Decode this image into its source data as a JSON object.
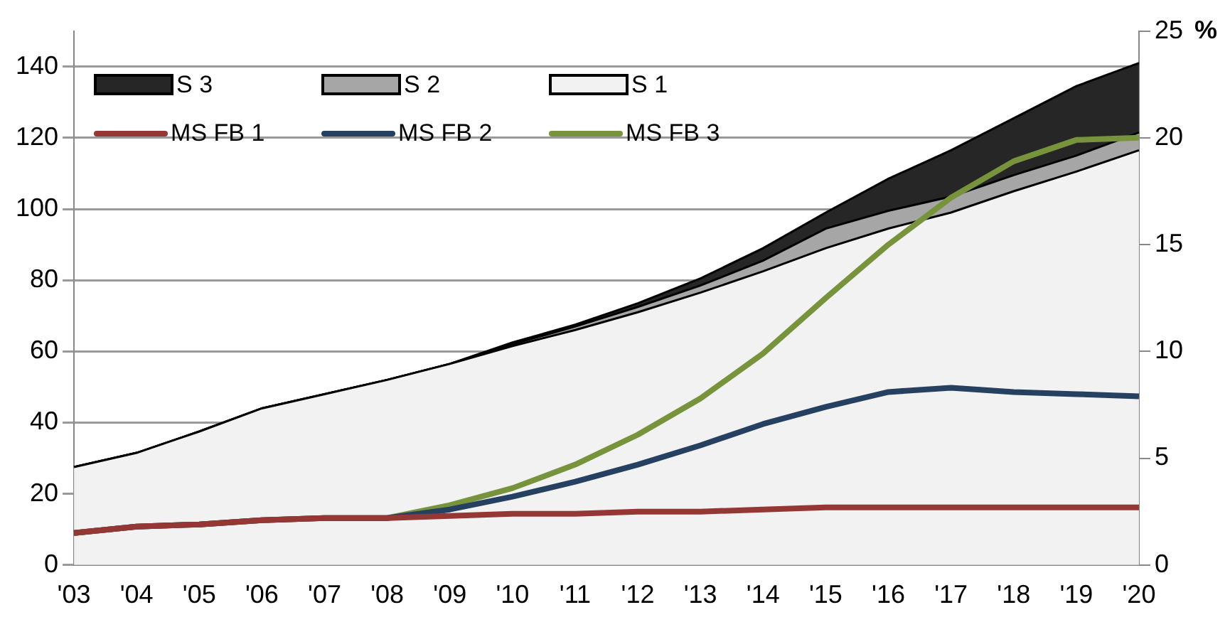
{
  "chart_data": {
    "type": "area",
    "stacked": true,
    "categories": [
      "'03",
      "'04",
      "'05",
      "'06",
      "'07",
      "'08",
      "'09",
      "'10",
      "'11",
      "'12",
      "'13",
      "'14",
      "'15",
      "'16",
      "'17",
      "'18",
      "'19",
      "'20"
    ],
    "series": [
      {
        "name": "S 1",
        "color": "#f2f2f2",
        "values": [
          27.5,
          31.5,
          37.5,
          44,
          48,
          52,
          56.5,
          61.5,
          66,
          71,
          76.5,
          82.5,
          89,
          94.5,
          99,
          105,
          110.5,
          116.5
        ]
      },
      {
        "name": "S 2",
        "color": "#a6a6a6",
        "values": [
          0,
          0,
          0,
          0,
          0,
          0,
          0,
          0.5,
          1,
          1.5,
          2,
          3,
          5.5,
          5,
          4.5,
          4.5,
          4.5,
          5
        ]
      },
      {
        "name": "S 3",
        "color": "#262626",
        "values": [
          0,
          0,
          0,
          0,
          0,
          0,
          0,
          0.5,
          0.5,
          1,
          2,
          3.5,
          4.5,
          9,
          13,
          16,
          19.5,
          19.5
        ]
      },
      {
        "name": "MS FB 1",
        "type": "line",
        "axis": "y2",
        "color": "#953735",
        "values": [
          1.5,
          1.8,
          1.9,
          2.1,
          2.2,
          2.2,
          2.3,
          2.4,
          2.4,
          2.5,
          2.5,
          2.6,
          2.7,
          2.7,
          2.7,
          2.7,
          2.7,
          2.7
        ]
      },
      {
        "name": "MS FB 2",
        "type": "line",
        "axis": "y2",
        "color": "#254061",
        "values": [
          1.5,
          1.8,
          1.9,
          2.1,
          2.2,
          2.2,
          2.6,
          3.2,
          3.9,
          4.7,
          5.6,
          6.6,
          7.4,
          8.1,
          8.3,
          8.1,
          8,
          7.9
        ]
      },
      {
        "name": "MS FB 3",
        "type": "line",
        "axis": "y2",
        "color": "#77933c",
        "values": [
          1.5,
          1.8,
          1.9,
          2.1,
          2.2,
          2.2,
          2.8,
          3.6,
          4.7,
          6.1,
          7.8,
          9.9,
          12.5,
          15,
          17.2,
          18.9,
          19.9,
          20
        ]
      }
    ],
    "ylim": [
      0,
      150
    ],
    "yticks": [
      0,
      20,
      40,
      60,
      80,
      100,
      120,
      140
    ],
    "y2lim": [
      0,
      25
    ],
    "y2ticks": [
      0,
      5,
      10,
      15,
      20,
      25
    ],
    "y2label": "%",
    "grid": "y",
    "legend": "top",
    "marker": "none",
    "line_style": "solid"
  }
}
